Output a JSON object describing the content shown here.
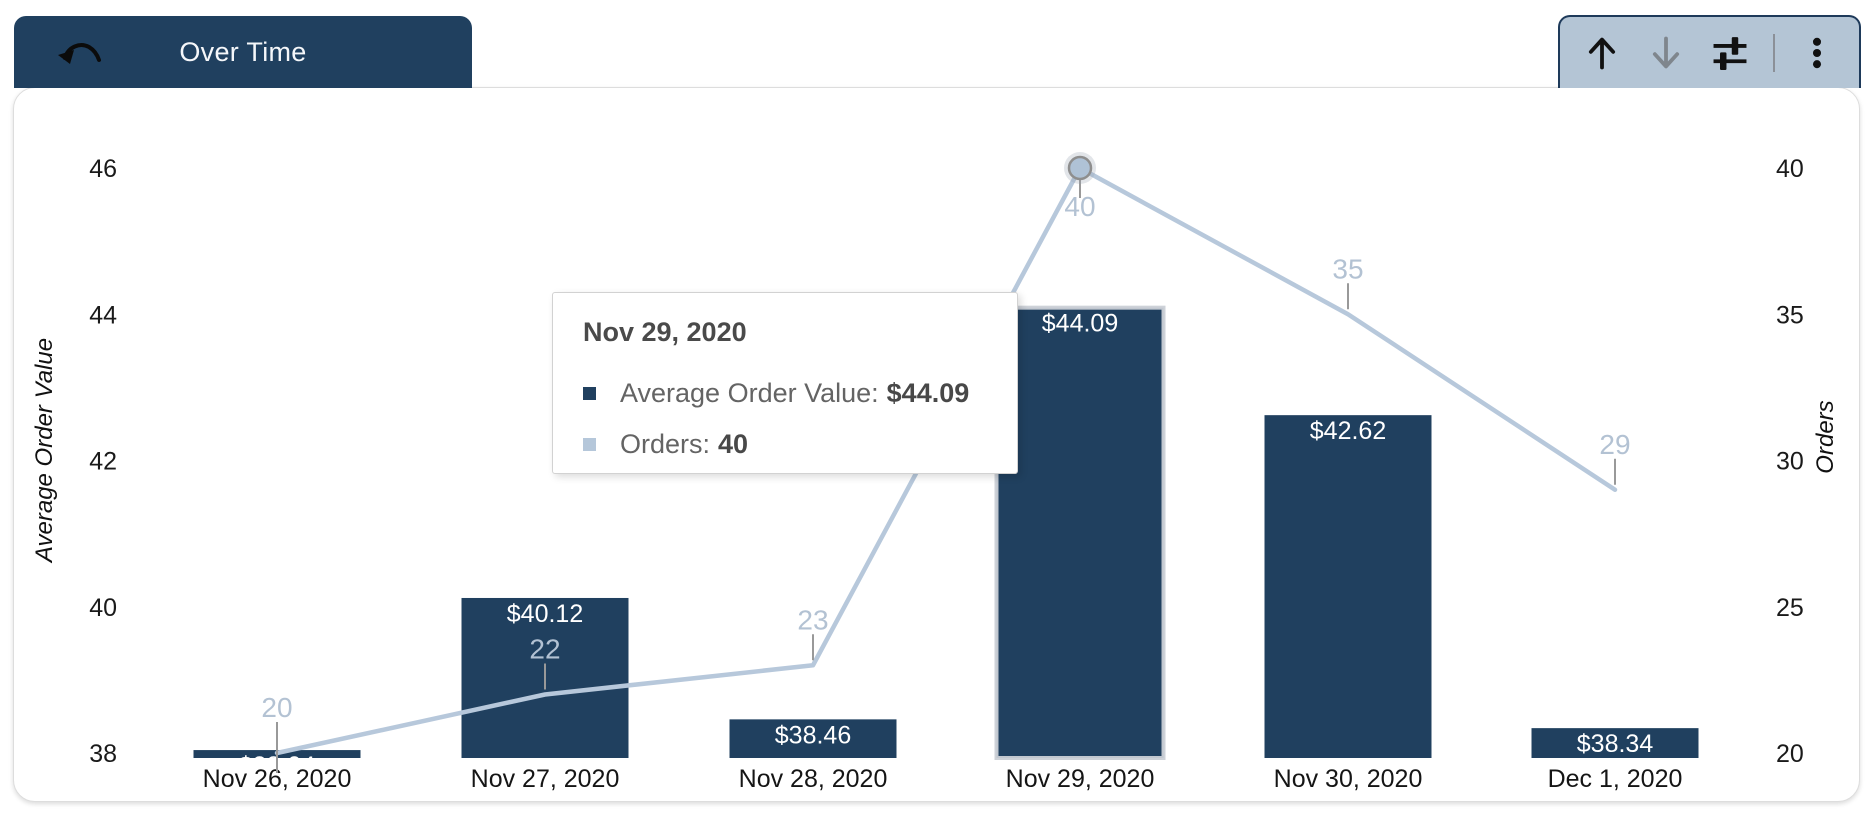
{
  "tab": {
    "label": "Over Time"
  },
  "toolbar": {
    "icons": [
      "arrow-up",
      "arrow-down",
      "tune",
      "kebab-menu"
    ]
  },
  "tooltip": {
    "title": "Nov 29, 2020",
    "rows": [
      {
        "label": "Average Order Value:",
        "value": "$44.09",
        "marker_color": "#20405F"
      },
      {
        "label": "Orders:",
        "value": "40",
        "marker_color": "#B5C7DA"
      }
    ]
  },
  "chart_data": {
    "type": "combo",
    "categories": [
      "Nov 26, 2020",
      "Nov 27, 2020",
      "Nov 28, 2020",
      "Nov 29, 2020",
      "Nov 30, 2020",
      "Dec 1, 2020"
    ],
    "series": [
      {
        "name": "Average Order Value",
        "type": "bar",
        "axis": "left",
        "color": "#20405F",
        "values": [
          38.04,
          40.12,
          38.46,
          44.09,
          42.62,
          38.34
        ],
        "labels": [
          "$38.04",
          "$40.12",
          "$38.46",
          "$44.09",
          "$42.62",
          "$38.34"
        ],
        "label_color": "#ffffff"
      },
      {
        "name": "Orders",
        "type": "line",
        "axis": "right",
        "color": "#B7C8DB",
        "values": [
          20,
          22,
          23,
          40,
          35,
          29
        ],
        "labels": [
          "20",
          "22",
          "23",
          "40",
          "35",
          "29"
        ],
        "label_color": "#B3C2D3"
      }
    ],
    "left_axis": {
      "title": "Average Order Value",
      "ticks": [
        46,
        44,
        42,
        40,
        38
      ],
      "range": [
        38,
        46
      ]
    },
    "right_axis": {
      "title": "Orders",
      "ticks": [
        40,
        35,
        30,
        25,
        20
      ],
      "range": [
        20,
        40
      ]
    },
    "highlighted_index": 3,
    "legend_visible": false,
    "grid_visible": false
  },
  "colors": {
    "bar_fill": "#20405F",
    "line_stroke": "#B7C8DB",
    "line_label": "#B3C2D3",
    "callout": "#999999",
    "axis_text": "#1a1a1a",
    "tab_bg": "#20405F",
    "toolbar_bg": "#B4C5D5",
    "toolbar_border": "#1E3A5A",
    "highlight_ring": "#8E8E8E"
  }
}
